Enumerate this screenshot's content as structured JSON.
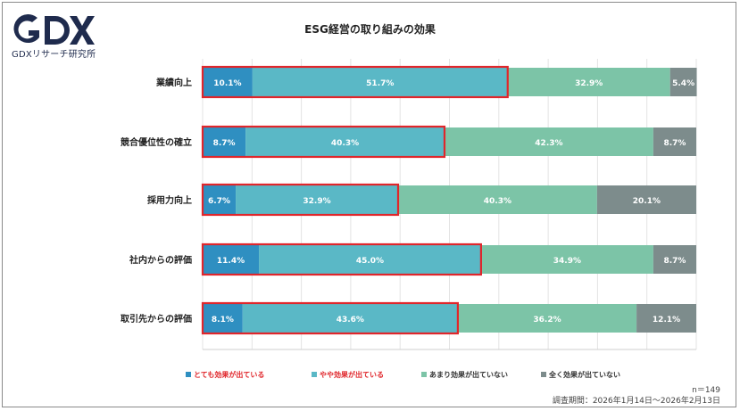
{
  "brand": {
    "logo_text": "GDX",
    "subtitle": "GDXリサーチ研究所",
    "color": "#1f2b4d"
  },
  "colors": {
    "very": "#2f8fc1",
    "some": "#5ab8c6",
    "little": "#7cc4a7",
    "none": "#7d8c8c",
    "highlight": "#e0262b",
    "legend_red_text": "#e0262b",
    "legend_gray_text": "#333333"
  },
  "chart_data": {
    "type": "bar",
    "orientation": "horizontal",
    "stacked": "percent",
    "title": "ESG経営の取り組みの効果",
    "categories": [
      "業績向上",
      "競合優位性の確立",
      "採用力向上",
      "社内からの評価",
      "取引先からの評価"
    ],
    "series": [
      {
        "name": "とても効果が出ている",
        "values": [
          10.1,
          8.7,
          6.7,
          11.4,
          8.1
        ]
      },
      {
        "name": "やや効果が出ている",
        "values": [
          51.7,
          40.3,
          32.9,
          45.0,
          43.6
        ]
      },
      {
        "name": "あまり効果が出ていない",
        "values": [
          32.9,
          42.3,
          40.3,
          34.9,
          36.2
        ]
      },
      {
        "name": "全く効果が出ていない",
        "values": [
          5.4,
          8.7,
          20.1,
          8.7,
          12.1
        ]
      }
    ],
    "highlight_series": [
      "とても効果が出ている",
      "やや効果が出ている"
    ],
    "xlim": [
      0,
      100
    ],
    "grid": true,
    "legend": "bottom",
    "sample_size": "n＝149",
    "survey_period": "調査期間：2026年1月14日～2026年2月13日"
  }
}
